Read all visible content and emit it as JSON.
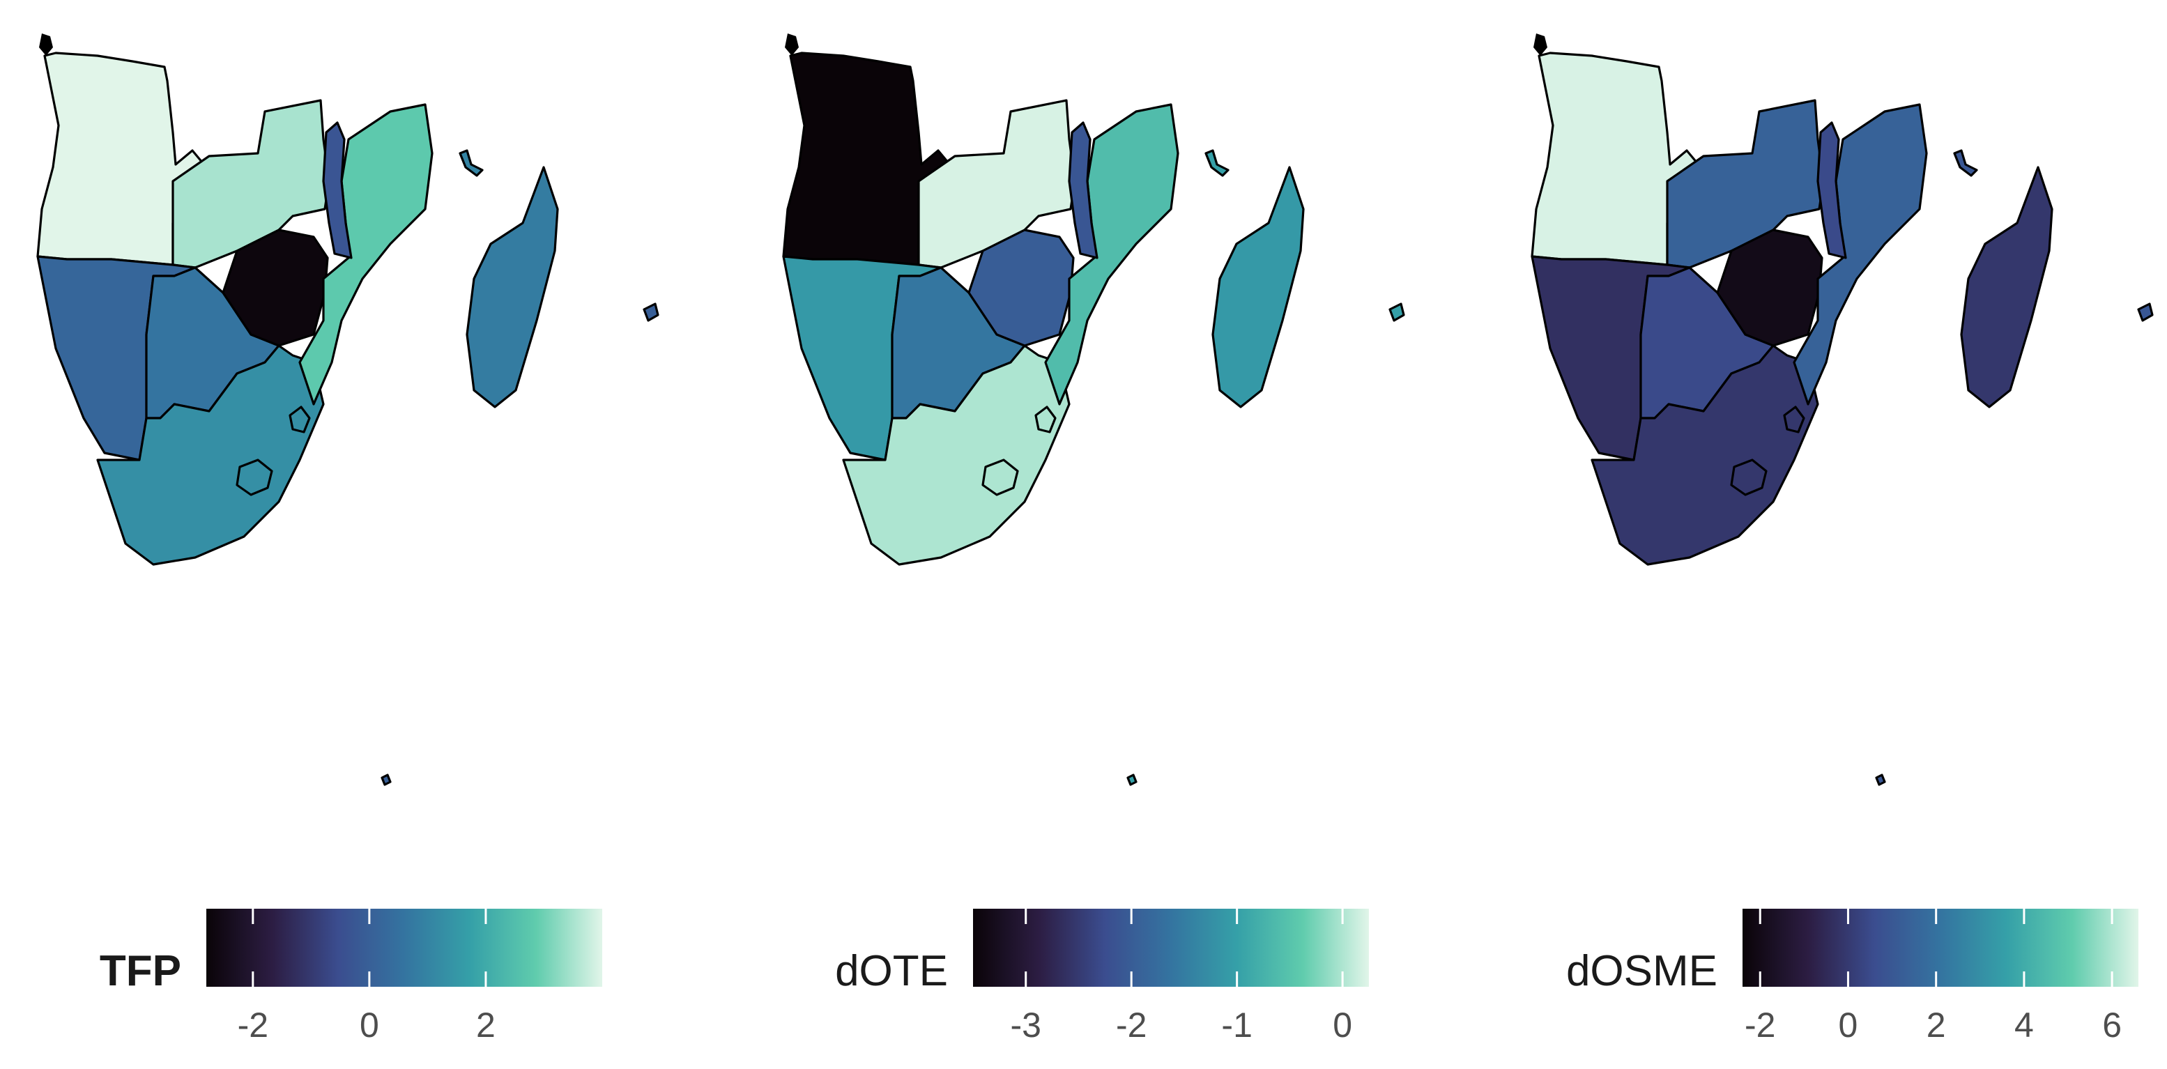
{
  "panels": [
    {
      "id": "tfp",
      "legend": {
        "title": "TFP",
        "title_bold": true,
        "min": -2.8,
        "max": 4.0,
        "ticks": [
          -2,
          0,
          2
        ]
      },
      "countries": {
        "angola": 4.0,
        "zambia": 3.5,
        "malawi": -0.3,
        "mozambique": 2.8,
        "zimbabwe": -2.7,
        "namibia": 0.2,
        "botswana": 0.6,
        "south_africa": 1.3,
        "lesotho": 1.3,
        "eswatini": 1.3,
        "madagascar": 0.8,
        "comoros": 1.0,
        "mauritius": 0.0,
        "reunion": 0.0
      }
    },
    {
      "id": "dote",
      "legend": {
        "title": "dOTE",
        "title_bold": false,
        "min": -3.5,
        "max": 0.25,
        "ticks": [
          -3,
          -2,
          -1,
          0
        ]
      },
      "countries": {
        "angola": -3.5,
        "zambia": 0.2,
        "malawi": -2.1,
        "mozambique": -0.6,
        "zimbabwe": -2.0,
        "namibia": -1.1,
        "botswana": -1.6,
        "south_africa": 0.0,
        "lesotho": 0.0,
        "eswatini": 0.0,
        "madagascar": -1.1,
        "comoros": -1.0,
        "mauritius": -1.0,
        "reunion": -1.0
      }
    },
    {
      "id": "dosme",
      "legend": {
        "title": "dOSME",
        "title_bold": false,
        "min": -2.4,
        "max": 6.6,
        "ticks": [
          -2,
          0,
          2,
          4,
          6
        ]
      },
      "countries": {
        "angola": 6.5,
        "zambia": 1.4,
        "malawi": 0.5,
        "mozambique": 1.4,
        "zimbabwe": -2.0,
        "namibia": -0.3,
        "botswana": 0.5,
        "south_africa": -0.1,
        "lesotho": -0.1,
        "eswatini": -0.1,
        "madagascar": -0.1,
        "comoros": 1.0,
        "mauritius": 1.0,
        "reunion": 1.0
      }
    }
  ],
  "palette": [
    "#0a0408",
    "#2c1d43",
    "#3b4d8f",
    "#3474a0",
    "#35a0a8",
    "#60ccad",
    "#e1f5e9"
  ]
}
